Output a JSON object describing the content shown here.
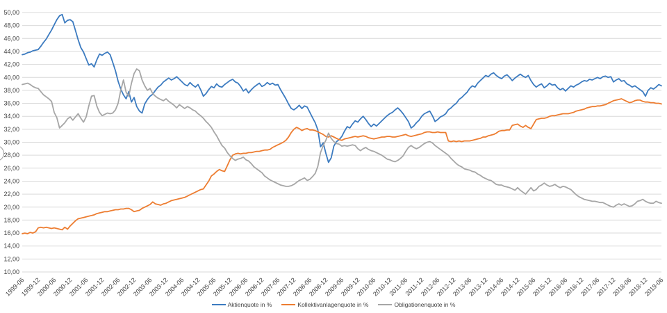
{
  "page": {
    "background_color": "#ffffff",
    "grid_color": "#d9d9d9",
    "axis_text_color": "#3f3f3f"
  },
  "chart_data": {
    "type": "line",
    "title": "",
    "xlabel": "",
    "ylabel": "",
    "x_start": "1999-06",
    "x_end": "2019-06",
    "x_step_months": 1,
    "ylim": [
      10,
      50
    ],
    "y_tick_step": 2,
    "y_tick_format": "de-comma-2dp",
    "y_tick_labels_example": [
      "10,00",
      "12,00",
      "50,00"
    ],
    "grid": true,
    "legend_position": "bottom-center",
    "x_tick_labels": [
      "1999-06",
      "1999-12",
      "2000-06",
      "2000-12",
      "2001-06",
      "2001-12",
      "2002-06",
      "2002-12",
      "2003-06",
      "2003-12",
      "2004-06",
      "2004-12",
      "2005-06",
      "2005-12",
      "2006-06",
      "2006-12",
      "2007-06",
      "2007-12",
      "2008-06",
      "2008-12",
      "2009-06",
      "2009-12",
      "2010-06",
      "2010-12",
      "2011-06",
      "2011-12",
      "2012-06",
      "2012-12",
      "2013-06",
      "2013-12",
      "2014-06",
      "2014-12",
      "2015-06",
      "2015-12",
      "2016-06",
      "2016-12",
      "2017-06",
      "2017-12",
      "2018-06",
      "2018-12",
      "2019-06"
    ],
    "series": [
      {
        "name": "Aktienquote in %",
        "color": "#3c7bc0",
        "values": [
          43.5,
          43.6,
          43.8,
          43.9,
          44.1,
          44.2,
          44.3,
          44.8,
          45.4,
          45.9,
          46.6,
          47.3,
          48.1,
          48.9,
          49.5,
          49.7,
          48.4,
          48.8,
          48.9,
          48.6,
          47.2,
          45.8,
          44.6,
          43.9,
          42.9,
          41.9,
          42.1,
          41.6,
          42.7,
          43.6,
          43.4,
          43.7,
          43.9,
          43.5,
          42.3,
          41.0,
          39.4,
          38.2,
          37.3,
          36.7,
          37.8,
          36.2,
          36.9,
          35.5,
          34.8,
          34.5,
          35.9,
          36.6,
          37.1,
          37.4,
          38.0,
          38.5,
          38.8,
          39.3,
          39.6,
          39.9,
          39.6,
          39.8,
          40.1,
          39.7,
          39.3,
          38.9,
          38.7,
          39.2,
          38.8,
          38.5,
          38.9,
          38.1,
          37.1,
          37.5,
          38.1,
          38.6,
          38.4,
          39.0,
          38.6,
          38.5,
          38.9,
          39.2,
          39.5,
          39.7,
          39.3,
          39.1,
          38.6,
          37.9,
          38.2,
          37.6,
          38.1,
          38.5,
          38.8,
          39.1,
          38.6,
          38.8,
          39.2,
          38.9,
          39.1,
          38.8,
          38.9,
          38.1,
          37.4,
          36.7,
          35.9,
          35.2,
          35.0,
          35.3,
          35.7,
          35.2,
          35.6,
          35.4,
          34.6,
          33.8,
          33.0,
          31.9,
          29.3,
          29.9,
          28.3,
          26.9,
          27.6,
          29.4,
          30.1,
          30.4,
          30.9,
          31.7,
          32.4,
          32.2,
          32.8,
          33.3,
          33.1,
          33.6,
          34.0,
          33.5,
          32.9,
          32.4,
          32.8,
          32.5,
          32.9,
          33.3,
          33.7,
          34.1,
          34.4,
          34.6,
          35.0,
          35.3,
          34.9,
          34.4,
          33.8,
          33.2,
          32.2,
          32.5,
          33.0,
          33.4,
          34.0,
          34.4,
          34.6,
          34.8,
          34.1,
          33.2,
          33.5,
          33.9,
          34.1,
          34.4,
          35.0,
          35.3,
          35.7,
          36.0,
          36.6,
          36.9,
          37.3,
          37.7,
          38.3,
          38.7,
          38.5,
          39.1,
          39.5,
          39.9,
          40.3,
          40.1,
          40.5,
          40.7,
          40.3,
          40.0,
          39.8,
          40.2,
          40.4,
          40.0,
          39.5,
          39.9,
          40.2,
          40.5,
          40.2,
          40.0,
          40.3,
          39.5,
          38.9,
          38.5,
          38.8,
          39.0,
          38.4,
          38.7,
          39.1,
          38.8,
          38.9,
          38.4,
          38.1,
          38.3,
          37.9,
          38.3,
          38.7,
          38.5,
          38.8,
          39.0,
          39.3,
          39.5,
          39.4,
          39.7,
          39.6,
          39.8,
          40.0,
          39.8,
          40.1,
          40.2,
          40.0,
          40.1,
          39.3,
          39.6,
          39.8,
          39.4,
          39.5,
          39.0,
          38.8,
          38.5,
          38.7,
          38.4,
          38.1,
          37.8,
          37.1,
          38.0,
          38.4,
          38.2,
          38.5,
          38.9,
          38.7
        ]
      },
      {
        "name": "Kollektivanlagenquote in %",
        "color": "#ed7d31",
        "values": [
          15.9,
          16.0,
          15.9,
          16.1,
          16.0,
          16.2,
          16.8,
          16.9,
          16.8,
          16.9,
          16.8,
          16.7,
          16.8,
          16.7,
          16.6,
          16.5,
          16.9,
          16.6,
          17.1,
          17.5,
          17.9,
          18.2,
          18.3,
          18.4,
          18.5,
          18.6,
          18.7,
          18.8,
          19.0,
          19.1,
          19.2,
          19.3,
          19.3,
          19.4,
          19.5,
          19.6,
          19.6,
          19.7,
          19.7,
          19.8,
          19.8,
          19.6,
          19.3,
          19.4,
          19.5,
          19.8,
          20.0,
          20.2,
          20.4,
          20.8,
          20.5,
          20.4,
          20.3,
          20.5,
          20.6,
          20.8,
          21.0,
          21.1,
          21.2,
          21.3,
          21.4,
          21.5,
          21.7,
          21.9,
          22.1,
          22.3,
          22.5,
          22.7,
          22.8,
          23.4,
          24.0,
          24.8,
          25.1,
          25.5,
          25.8,
          25.6,
          25.5,
          26.4,
          27.3,
          28.0,
          28.2,
          28.3,
          28.2,
          28.3,
          28.3,
          28.4,
          28.4,
          28.5,
          28.6,
          28.6,
          28.7,
          28.8,
          28.8,
          28.9,
          29.2,
          29.4,
          29.6,
          29.8,
          30.0,
          30.3,
          30.8,
          31.5,
          32.0,
          32.3,
          32.1,
          31.8,
          32.0,
          32.1,
          31.9,
          31.9,
          31.8,
          31.6,
          31.4,
          31.2,
          30.9,
          30.8,
          31.0,
          30.8,
          30.6,
          30.4,
          30.3,
          30.5,
          30.6,
          30.7,
          30.8,
          30.9,
          30.8,
          30.9,
          31.0,
          30.9,
          30.7,
          30.6,
          30.5,
          30.6,
          30.7,
          30.8,
          30.8,
          30.9,
          30.9,
          30.8,
          30.8,
          30.9,
          31.0,
          31.1,
          31.2,
          31.0,
          30.9,
          31.0,
          31.1,
          31.2,
          31.3,
          31.5,
          31.6,
          31.6,
          31.5,
          31.5,
          31.6,
          31.5,
          31.5,
          31.5,
          30.2,
          30.1,
          30.2,
          30.1,
          30.2,
          30.1,
          30.2,
          30.2,
          30.2,
          30.3,
          30.4,
          30.5,
          30.6,
          30.8,
          30.8,
          31.0,
          31.1,
          31.2,
          31.4,
          31.7,
          31.8,
          31.8,
          31.9,
          31.9,
          32.6,
          32.7,
          32.8,
          32.5,
          32.3,
          32.6,
          32.3,
          32.1,
          32.8,
          33.5,
          33.6,
          33.7,
          33.7,
          33.8,
          34.0,
          34.1,
          34.1,
          34.2,
          34.3,
          34.4,
          34.4,
          34.4,
          34.5,
          34.6,
          34.8,
          34.9,
          35.0,
          35.1,
          35.3,
          35.4,
          35.5,
          35.5,
          35.6,
          35.6,
          35.7,
          35.8,
          36.0,
          36.2,
          36.4,
          36.5,
          36.6,
          36.7,
          36.5,
          36.3,
          36.1,
          36.2,
          36.4,
          36.5,
          36.5,
          36.3,
          36.2,
          36.2,
          36.1,
          36.1,
          36.0,
          36.0,
          35.9
        ]
      },
      {
        "name": "Obligationenquote in %",
        "color": "#a6a6a6",
        "values": [
          38.9,
          39.0,
          39.1,
          38.9,
          38.6,
          38.4,
          38.3,
          37.8,
          37.3,
          37.0,
          36.7,
          36.3,
          34.6,
          33.8,
          32.2,
          32.6,
          33.0,
          33.6,
          33.9,
          33.4,
          33.9,
          34.4,
          33.7,
          33.1,
          33.9,
          35.6,
          37.1,
          37.2,
          35.6,
          34.6,
          34.1,
          34.3,
          34.5,
          34.4,
          34.5,
          35.0,
          36.0,
          38.0,
          39.6,
          37.7,
          37.1,
          39.1,
          40.6,
          41.3,
          41.0,
          39.6,
          38.7,
          38.0,
          38.3,
          37.5,
          37.1,
          36.8,
          36.6,
          36.4,
          36.7,
          36.3,
          36.0,
          35.7,
          35.3,
          35.8,
          35.5,
          35.2,
          35.5,
          35.3,
          35.0,
          34.8,
          34.4,
          34.1,
          33.7,
          33.2,
          32.8,
          32.3,
          31.6,
          31.0,
          30.2,
          29.5,
          29.1,
          28.4,
          27.9,
          27.5,
          27.2,
          27.4,
          27.5,
          27.7,
          27.3,
          27.1,
          26.7,
          26.2,
          25.9,
          25.6,
          25.3,
          24.8,
          24.5,
          24.2,
          24.0,
          23.8,
          23.6,
          23.4,
          23.3,
          23.2,
          23.2,
          23.3,
          23.5,
          23.8,
          24.1,
          24.3,
          24.5,
          24.1,
          24.3,
          24.7,
          25.2,
          26.3,
          28.4,
          29.5,
          30.3,
          31.4,
          30.6,
          30.1,
          29.8,
          29.7,
          29.4,
          29.5,
          29.4,
          29.5,
          29.6,
          29.5,
          29.0,
          28.7,
          29.0,
          29.2,
          28.9,
          28.7,
          28.6,
          28.4,
          28.2,
          28.0,
          27.7,
          27.4,
          27.3,
          27.1,
          27.0,
          27.2,
          27.5,
          27.9,
          28.6,
          29.2,
          29.5,
          29.2,
          29.0,
          29.2,
          29.5,
          29.8,
          30.0,
          30.1,
          29.9,
          29.5,
          29.2,
          28.9,
          28.6,
          28.3,
          28.0,
          27.5,
          27.1,
          26.7,
          26.4,
          26.2,
          25.9,
          25.8,
          25.7,
          25.5,
          25.4,
          25.1,
          24.9,
          24.6,
          24.4,
          24.2,
          24.1,
          23.8,
          23.5,
          23.4,
          23.4,
          23.2,
          23.1,
          23.0,
          22.8,
          22.6,
          23.0,
          22.6,
          22.3,
          22.0,
          22.5,
          23.0,
          22.5,
          22.7,
          23.2,
          23.4,
          23.7,
          23.4,
          23.2,
          23.3,
          23.5,
          23.2,
          23.0,
          23.2,
          23.1,
          22.9,
          22.7,
          22.3,
          21.9,
          21.6,
          21.4,
          21.2,
          21.1,
          21.0,
          20.9,
          20.9,
          20.8,
          20.7,
          20.7,
          20.5,
          20.3,
          20.1,
          20.0,
          20.3,
          20.5,
          20.3,
          20.5,
          20.3,
          20.1,
          20.2,
          20.5,
          20.9,
          21.0,
          21.2,
          20.9,
          20.7,
          20.6,
          20.6,
          20.9,
          20.7,
          20.6
        ]
      }
    ]
  },
  "legend": {
    "items": [
      {
        "label": "Aktienquote in %"
      },
      {
        "label": "Kollektivanlagenquote in %"
      },
      {
        "label": "Obligationenquote in %"
      }
    ]
  }
}
